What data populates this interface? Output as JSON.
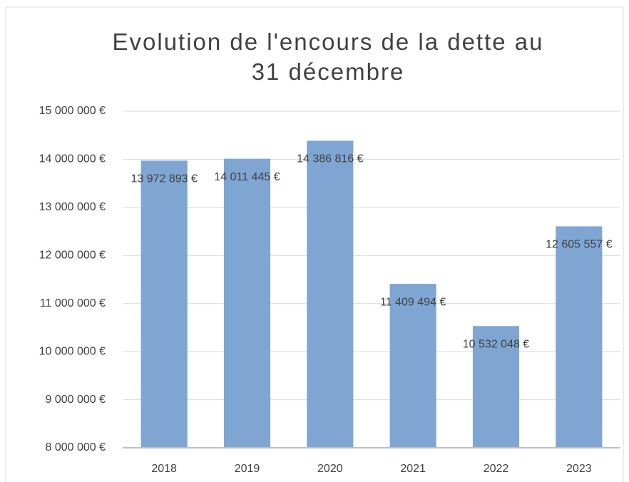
{
  "chart_data": {
    "type": "bar",
    "title": "Evolution de l'encours de la dette au 31  décembre",
    "categories": [
      "2018",
      "2019",
      "2020",
      "2021",
      "2022",
      "2023"
    ],
    "values": [
      13972893,
      14011445,
      14386816,
      11409494,
      10532048,
      12605557
    ],
    "value_labels": [
      "13 972 893 €",
      "14 011 445 €",
      "14 386 816 €",
      "11 409 494 €",
      "10 532 048 €",
      "12 605 557 €"
    ],
    "color": "#7fa6d3",
    "ylim": [
      8000000,
      15000000
    ],
    "yticks": [
      {
        "value": 8000000,
        "label": "8 000 000 €"
      },
      {
        "value": 9000000,
        "label": "9 000 000 €"
      },
      {
        "value": 10000000,
        "label": "10 000 000 €"
      },
      {
        "value": 11000000,
        "label": "11 000 000 €"
      },
      {
        "value": 12000000,
        "label": "12 000 000 €"
      },
      {
        "value": 13000000,
        "label": "13 000 000 €"
      },
      {
        "value": 14000000,
        "label": "14 000 000 €"
      },
      {
        "value": 15000000,
        "label": "15 000 000 €"
      }
    ],
    "grid": true
  }
}
